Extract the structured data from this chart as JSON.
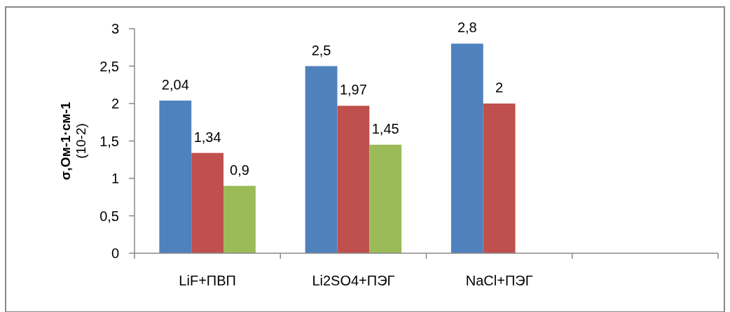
{
  "chart_data": {
    "type": "bar",
    "ylabel": "σ,Ом-1·см-1\n(10-2)",
    "categories": [
      "LiF+ПВП",
      "Li2SO4+ПЭГ",
      "NaCl+ПЭГ",
      null
    ],
    "series": [
      {
        "color": "#4f81bd",
        "values": [
          2.04,
          2.5,
          2.8,
          null
        ],
        "value_labels": [
          "2,04",
          "2,5",
          "2,8",
          null
        ]
      },
      {
        "color": "#c0504d",
        "values": [
          1.34,
          1.97,
          2,
          null
        ],
        "value_labels": [
          "1,34",
          "1,97",
          "2",
          null
        ]
      },
      {
        "color": "#9bbb59",
        "values": [
          0.9,
          1.45,
          null,
          null
        ],
        "value_labels": [
          "0,9",
          "1,45",
          null,
          null
        ]
      }
    ],
    "ylim": [
      0,
      3
    ],
    "yticks": [
      0,
      {
        "value": 0.5,
        "label": "0,5"
      },
      1,
      {
        "value": 1.5,
        "label": "1,5"
      },
      2,
      {
        "value": 2.5,
        "label": "2,5"
      },
      3
    ],
    "grid": false
  }
}
